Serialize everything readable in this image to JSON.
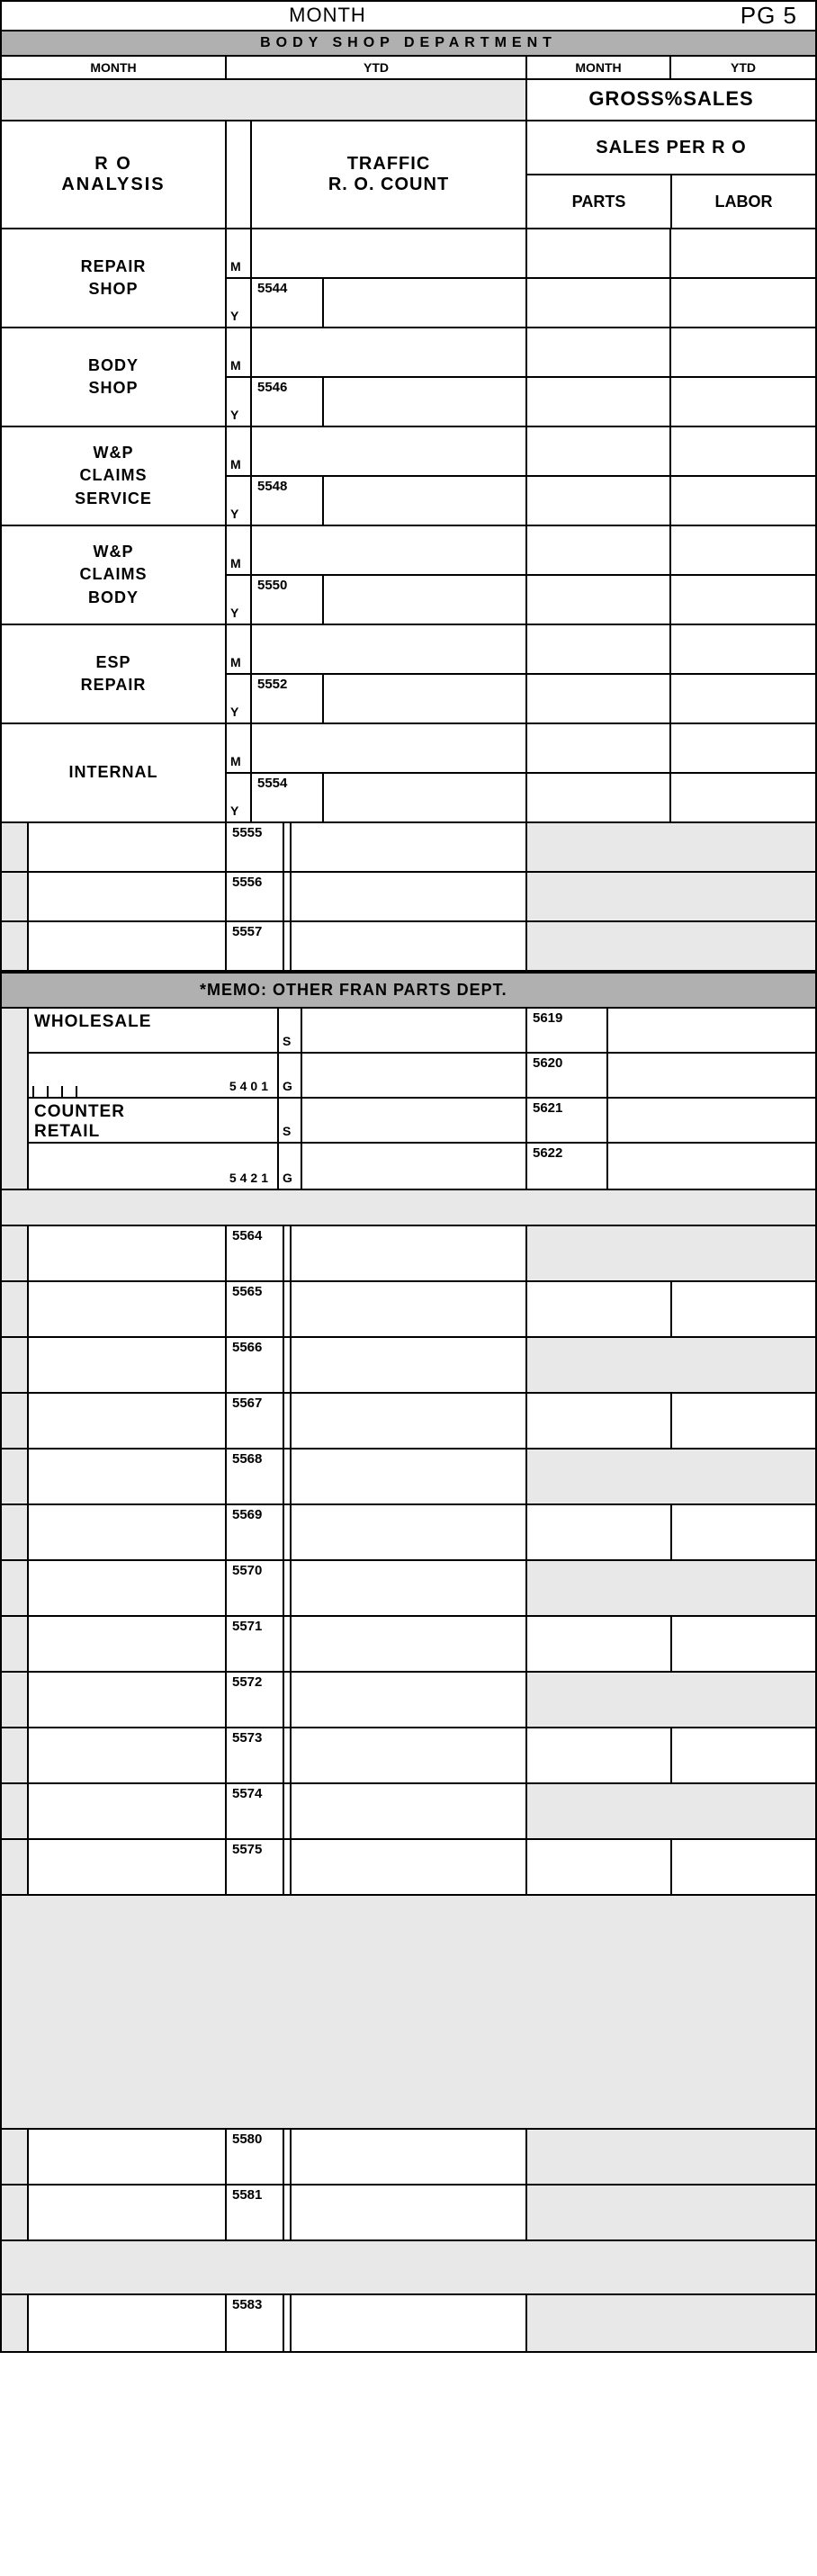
{
  "header": {
    "month_label": "MONTH",
    "page": "PG 5",
    "dept": "BODY SHOP DEPARTMENT",
    "col_month": "MONTH",
    "col_ytd": "YTD",
    "gross_sales": "GROSS%SALES"
  },
  "ro": {
    "ro_analysis_l1": "R O",
    "ro_analysis_l2": "ANALYSIS",
    "traffic_l1": "TRAFFIC",
    "traffic_l2": "R. O. COUNT",
    "sales_per_ro": "SALES PER R O",
    "parts": "PARTS",
    "labor": "LABOR",
    "rows": [
      {
        "label1": "REPAIR",
        "label2": "SHOP",
        "code": "5544"
      },
      {
        "label1": "BODY",
        "label2": "SHOP",
        "code": "5546"
      },
      {
        "label1": "W&P",
        "label2": "CLAIMS",
        "label3": "SERVICE",
        "code": "5548"
      },
      {
        "label1": "W&P",
        "label2": "CLAIMS",
        "label3": "BODY",
        "code": "5550"
      },
      {
        "label1": "ESP",
        "label2": "REPAIR",
        "code": "5552"
      },
      {
        "label1": "INTERNAL",
        "label2": "",
        "code": "5554"
      }
    ],
    "m": "M",
    "y": "Y"
  },
  "codes_a": [
    "5555",
    "5556",
    "5557"
  ],
  "memo": {
    "title": "*MEMO: OTHER FRAN PARTS DEPT.",
    "wholesale": "WHOLESALE",
    "counter_retail_l1": "COUNTER",
    "counter_retail_l2": "RETAIL",
    "acct1": "5401",
    "acct2": "5421",
    "s": "S",
    "g": "G",
    "right_codes": [
      "5619",
      "5620",
      "5621",
      "5622"
    ]
  },
  "codes_b": [
    {
      "code": "5564",
      "right_gray": true
    },
    {
      "code": "5565",
      "right_gray": false
    },
    {
      "code": "5566",
      "right_gray": true
    },
    {
      "code": "5567",
      "right_gray": false
    },
    {
      "code": "5568",
      "right_gray": true
    },
    {
      "code": "5569",
      "right_gray": false
    },
    {
      "code": "5570",
      "right_gray": true
    },
    {
      "code": "5571",
      "right_gray": false
    },
    {
      "code": "5572",
      "right_gray": true
    },
    {
      "code": "5573",
      "right_gray": false
    },
    {
      "code": "5574",
      "right_gray": true
    },
    {
      "code": "5575",
      "right_gray": false
    }
  ],
  "codes_c": [
    {
      "code": "5580"
    },
    {
      "code": "5581"
    }
  ],
  "codes_d": [
    {
      "code": "5583"
    }
  ],
  "colors": {
    "band_gray": "#b0b0b0",
    "light_gray": "#e8e8e8",
    "border": "#000000"
  }
}
